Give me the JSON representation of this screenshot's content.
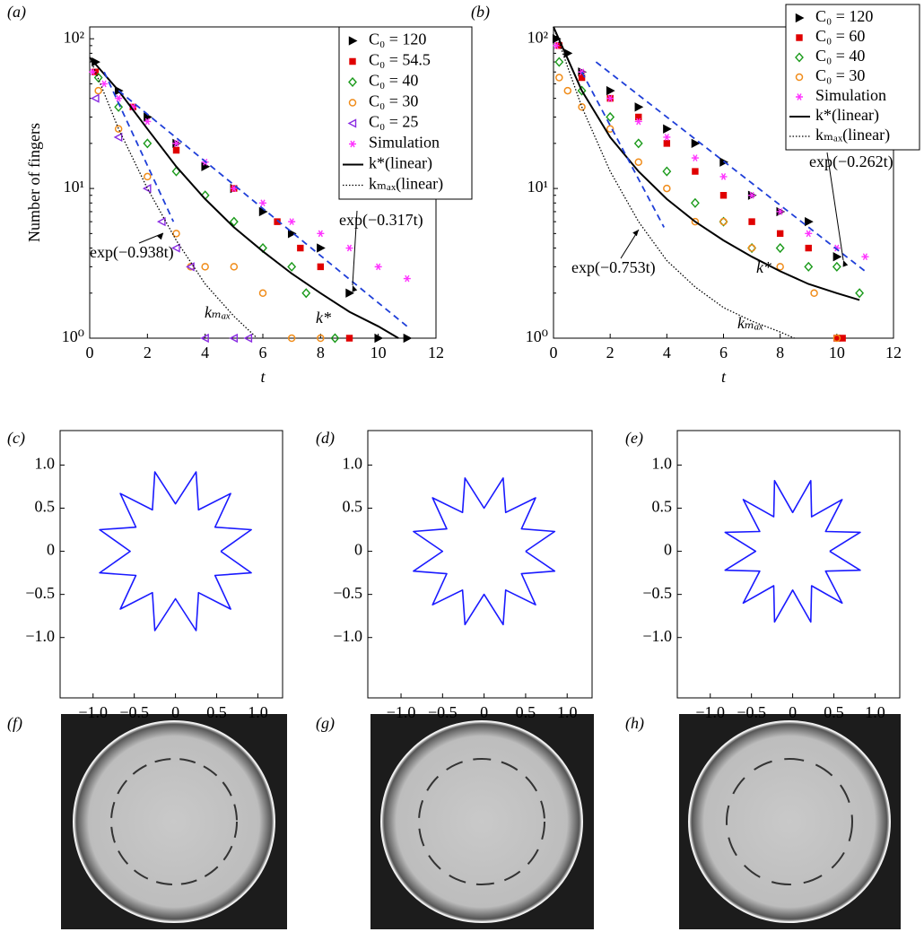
{
  "chart_data": [
    {
      "type": "scatter",
      "panel": "(a)",
      "ylog": true,
      "xlabel": "t",
      "ylabel": "Number of fingers",
      "xlim": [
        0,
        12
      ],
      "xticks": [
        0,
        2,
        4,
        6,
        8,
        10,
        12
      ],
      "ylim": [
        1,
        120
      ],
      "yticks": [
        {
          "value": 1,
          "label": "10⁰"
        },
        {
          "value": 10,
          "label": "10¹"
        },
        {
          "value": 100,
          "label": "10²"
        }
      ],
      "series": [
        {
          "name": "C₀ = 120",
          "color": "#000000",
          "marker": "triangle-right",
          "x": [
            0.2,
            1,
            2,
            3,
            4,
            5,
            6,
            7,
            8,
            9,
            10,
            11
          ],
          "values": [
            70,
            45,
            30,
            20,
            14,
            10,
            7,
            5,
            4,
            2,
            1,
            1
          ]
        },
        {
          "name": "C₀ = 54.5",
          "color": "#e00000",
          "marker": "square",
          "x": [
            0.2,
            1.5,
            3,
            5,
            6.5,
            7.3,
            8,
            9
          ],
          "values": [
            60,
            35,
            18,
            10,
            6,
            4,
            3,
            1
          ]
        },
        {
          "name": "C₀ = 40",
          "color": "#1a9a1a",
          "marker": "diamond",
          "x": [
            0.3,
            1,
            2,
            3,
            4,
            5,
            6,
            7,
            7.5,
            8.5
          ],
          "values": [
            55,
            35,
            20,
            13,
            9,
            6,
            4,
            3,
            2,
            1
          ]
        },
        {
          "name": "C₀ = 30",
          "color": "#f08c1a",
          "marker": "circle",
          "x": [
            0.3,
            1,
            2,
            3,
            3.5,
            4,
            5,
            6,
            7,
            8
          ],
          "values": [
            45,
            25,
            12,
            5,
            3,
            3,
            3,
            2,
            1,
            1
          ]
        },
        {
          "name": "C₀ = 25",
          "color": "#8a2be2",
          "marker": "triangle-left",
          "x": [
            0.2,
            1,
            2,
            2.5,
            3,
            3.5,
            4,
            5,
            5.5
          ],
          "values": [
            40,
            22,
            10,
            6,
            4,
            3,
            1,
            1,
            1
          ]
        },
        {
          "name": "Simulation",
          "color": "#ff33ff",
          "marker": "star",
          "x": [
            0.1,
            0.5,
            1,
            1.5,
            2,
            3,
            4,
            5,
            6,
            7,
            8,
            9,
            10,
            11
          ],
          "values": [
            60,
            50,
            40,
            35,
            28,
            20,
            15,
            10,
            8,
            6,
            5,
            4,
            3,
            2.5
          ]
        },
        {
          "name": "k*(linear)",
          "color": "#000000",
          "style": "solid",
          "x": [
            0,
            1,
            2,
            3,
            4,
            5,
            6,
            7,
            8,
            9,
            10,
            10.7
          ],
          "values": [
            75,
            45,
            25,
            14,
            8.5,
            5.5,
            3.8,
            2.7,
            2,
            1.5,
            1.2,
            1
          ]
        },
        {
          "name": "kₘₐₓ(linear)",
          "color": "#000000",
          "style": "dotted",
          "x": [
            0,
            1,
            2,
            3,
            4,
            5,
            5.8
          ],
          "values": [
            75,
            25,
            10,
            4.5,
            2.3,
            1.4,
            1
          ]
        }
      ],
      "fits": [
        {
          "label": "exp(−0.938t)",
          "color": "#1f3fd8",
          "x": [
            0.5,
            2.9
          ],
          "values": [
            60,
            6
          ]
        },
        {
          "label": "exp(−0.317t)",
          "color": "#1f3fd8",
          "x": [
            1,
            11
          ],
          "values": [
            45,
            1.2
          ]
        }
      ],
      "annotations": [
        "kₘₐₓ",
        "k*"
      ]
    },
    {
      "type": "scatter",
      "panel": "(b)",
      "ylog": true,
      "xlabel": "t",
      "xlim": [
        0,
        12
      ],
      "xticks": [
        0,
        2,
        4,
        6,
        8,
        10,
        12
      ],
      "ylim": [
        1,
        120
      ],
      "yticks": [
        {
          "value": 1,
          "label": "10⁰"
        },
        {
          "value": 10,
          "label": "10¹"
        },
        {
          "value": 100,
          "label": "10²"
        }
      ],
      "series": [
        {
          "name": "C₀ = 120",
          "color": "#000000",
          "marker": "triangle-right",
          "x": [
            0.1,
            0.5,
            1,
            2,
            3,
            4,
            5,
            6,
            7,
            8,
            9,
            10
          ],
          "values": [
            100,
            80,
            60,
            45,
            35,
            25,
            20,
            15,
            9,
            7,
            6,
            3.5
          ]
        },
        {
          "name": "C₀ = 60",
          "color": "#e00000",
          "marker": "square",
          "x": [
            0.2,
            1,
            2,
            3,
            4,
            5,
            6,
            7,
            8,
            9,
            10,
            10.2
          ],
          "values": [
            90,
            55,
            40,
            30,
            20,
            13,
            9,
            6,
            5,
            4,
            1,
            1
          ]
        },
        {
          "name": "C₀ = 40",
          "color": "#1a9a1a",
          "marker": "diamond",
          "x": [
            0.2,
            1,
            2,
            3,
            4,
            5,
            6,
            7,
            8,
            9,
            10,
            10.8
          ],
          "values": [
            70,
            45,
            30,
            20,
            13,
            8,
            6,
            4,
            4,
            3,
            3,
            2
          ]
        },
        {
          "name": "C₀ = 30",
          "color": "#f08c1a",
          "marker": "circle",
          "x": [
            0.2,
            0.5,
            1,
            2,
            3,
            4,
            5,
            6,
            7,
            8,
            9.2,
            10
          ],
          "values": [
            55,
            45,
            35,
            25,
            15,
            10,
            6,
            6,
            4,
            3,
            2,
            1
          ]
        },
        {
          "name": "Simulation",
          "color": "#ff33ff",
          "marker": "star",
          "x": [
            0.1,
            1,
            2,
            3,
            4,
            5,
            6,
            7,
            8,
            9,
            10,
            11
          ],
          "values": [
            90,
            60,
            40,
            28,
            22,
            16,
            12,
            9,
            7,
            5,
            4,
            3.5
          ]
        },
        {
          "name": "k*(linear)",
          "color": "#000000",
          "style": "solid",
          "x": [
            0,
            1,
            2,
            3,
            4,
            5,
            6,
            7,
            8,
            9,
            10,
            10.8
          ],
          "values": [
            120,
            45,
            22,
            13,
            8.5,
            6,
            4.5,
            3.5,
            2.8,
            2.3,
            2,
            1.8
          ]
        },
        {
          "name": "kₘₐₓ(linear)",
          "color": "#000000",
          "style": "dotted",
          "x": [
            0,
            1,
            2,
            3,
            4,
            5,
            6,
            7,
            8,
            8.5
          ],
          "values": [
            120,
            35,
            13,
            6,
            3.3,
            2.2,
            1.6,
            1.3,
            1.1,
            1
          ]
        }
      ],
      "fits": [
        {
          "label": "exp(−0.753t)",
          "color": "#1f3fd8",
          "x": [
            1,
            3.9
          ],
          "values": [
            60,
            5.5
          ]
        },
        {
          "label": "exp(−0.262t)",
          "color": "#1f3fd8",
          "x": [
            1.5,
            11
          ],
          "values": [
            70,
            2.8
          ]
        }
      ],
      "annotations": [
        "kₘₐₓ",
        "k*"
      ]
    },
    {
      "type": "line",
      "panel": "(c)",
      "color": "#1a1aff",
      "xlim": [
        -1.4,
        1.3
      ],
      "ylim": [
        -1.7,
        1.4
      ],
      "xticks": [
        {
          "value": -1,
          "label": "−1.0"
        },
        {
          "value": -0.5,
          "label": "−0.5"
        },
        0,
        0.5,
        {
          "value": 1,
          "label": "1.0"
        }
      ],
      "yticks": [
        {
          "value": -1,
          "label": "−1.0"
        },
        {
          "value": -0.5,
          "label": "−0.5"
        },
        0,
        0.5,
        {
          "value": 1,
          "label": "1.0"
        }
      ],
      "x": [
        0.55,
        0.92,
        0.48,
        0.67,
        0.28,
        0.25,
        0,
        -0.25,
        -0.28,
        -0.67,
        -0.48,
        -0.92,
        -0.55,
        -0.92,
        -0.48,
        -0.67,
        -0.28,
        -0.25,
        0,
        0.25,
        0.28,
        0.67,
        0.48,
        0.92,
        0.55
      ],
      "values": [
        0,
        0.25,
        0.28,
        0.67,
        0.48,
        0.92,
        0.55,
        0.92,
        0.48,
        0.67,
        0.28,
        0.25,
        0,
        -0.25,
        -0.28,
        -0.67,
        -0.48,
        -0.92,
        -0.55,
        -0.92,
        -0.48,
        -0.67,
        -0.28,
        -0.25,
        0
      ]
    },
    {
      "type": "line",
      "panel": "(d)",
      "color": "#1a1aff",
      "xlim": [
        -1.4,
        1.3
      ],
      "ylim": [
        -1.7,
        1.4
      ],
      "xticks": [
        {
          "value": -1,
          "label": "−1.0"
        },
        {
          "value": -0.5,
          "label": "−0.5"
        },
        0,
        0.5,
        {
          "value": 1,
          "label": "1.0"
        }
      ],
      "yticks": [
        {
          "value": -1,
          "label": "−1.0"
        },
        {
          "value": -0.5,
          "label": "−0.5"
        },
        0,
        0.5,
        {
          "value": 1,
          "label": "1.0"
        }
      ],
      "x": [
        0.5,
        0.85,
        0.45,
        0.62,
        0.26,
        0.23,
        0,
        -0.23,
        -0.26,
        -0.62,
        -0.45,
        -0.85,
        -0.5,
        -0.85,
        -0.45,
        -0.62,
        -0.26,
        -0.23,
        0,
        0.23,
        0.26,
        0.62,
        0.45,
        0.85,
        0.5
      ],
      "values": [
        0,
        0.23,
        0.26,
        0.62,
        0.45,
        0.85,
        0.5,
        0.85,
        0.45,
        0.62,
        0.26,
        0.23,
        0,
        -0.23,
        -0.26,
        -0.62,
        -0.45,
        -0.85,
        -0.5,
        -0.85,
        -0.45,
        -0.62,
        -0.26,
        -0.23,
        0
      ]
    },
    {
      "type": "line",
      "panel": "(e)",
      "color": "#1a1aff",
      "xlim": [
        -1.4,
        1.3
      ],
      "ylim": [
        -1.7,
        1.4
      ],
      "xticks": [
        {
          "value": -1,
          "label": "−1.0"
        },
        {
          "value": -0.5,
          "label": "−0.5"
        },
        0,
        0.5,
        {
          "value": 1,
          "label": "1.0"
        }
      ],
      "yticks": [
        {
          "value": -1,
          "label": "−1.0"
        },
        {
          "value": -0.5,
          "label": "−0.5"
        },
        0,
        0.5,
        {
          "value": 1,
          "label": "1.0"
        }
      ],
      "x": [
        0.45,
        0.82,
        0.4,
        0.6,
        0.23,
        0.22,
        0,
        -0.22,
        -0.23,
        -0.6,
        -0.4,
        -0.82,
        -0.45,
        -0.82,
        -0.4,
        -0.6,
        -0.23,
        -0.22,
        0,
        0.22,
        0.23,
        0.6,
        0.4,
        0.82,
        0.45
      ],
      "values": [
        0,
        0.22,
        0.23,
        0.6,
        0.4,
        0.82,
        0.45,
        0.82,
        0.4,
        0.6,
        0.23,
        0.22,
        0,
        -0.22,
        -0.23,
        -0.6,
        -0.4,
        -0.82,
        -0.45,
        -0.82,
        -0.4,
        -0.6,
        -0.23,
        -0.22,
        0
      ]
    }
  ],
  "photos": [
    {
      "label": "(f)"
    },
    {
      "label": "(g)"
    },
    {
      "label": "(h)"
    }
  ]
}
